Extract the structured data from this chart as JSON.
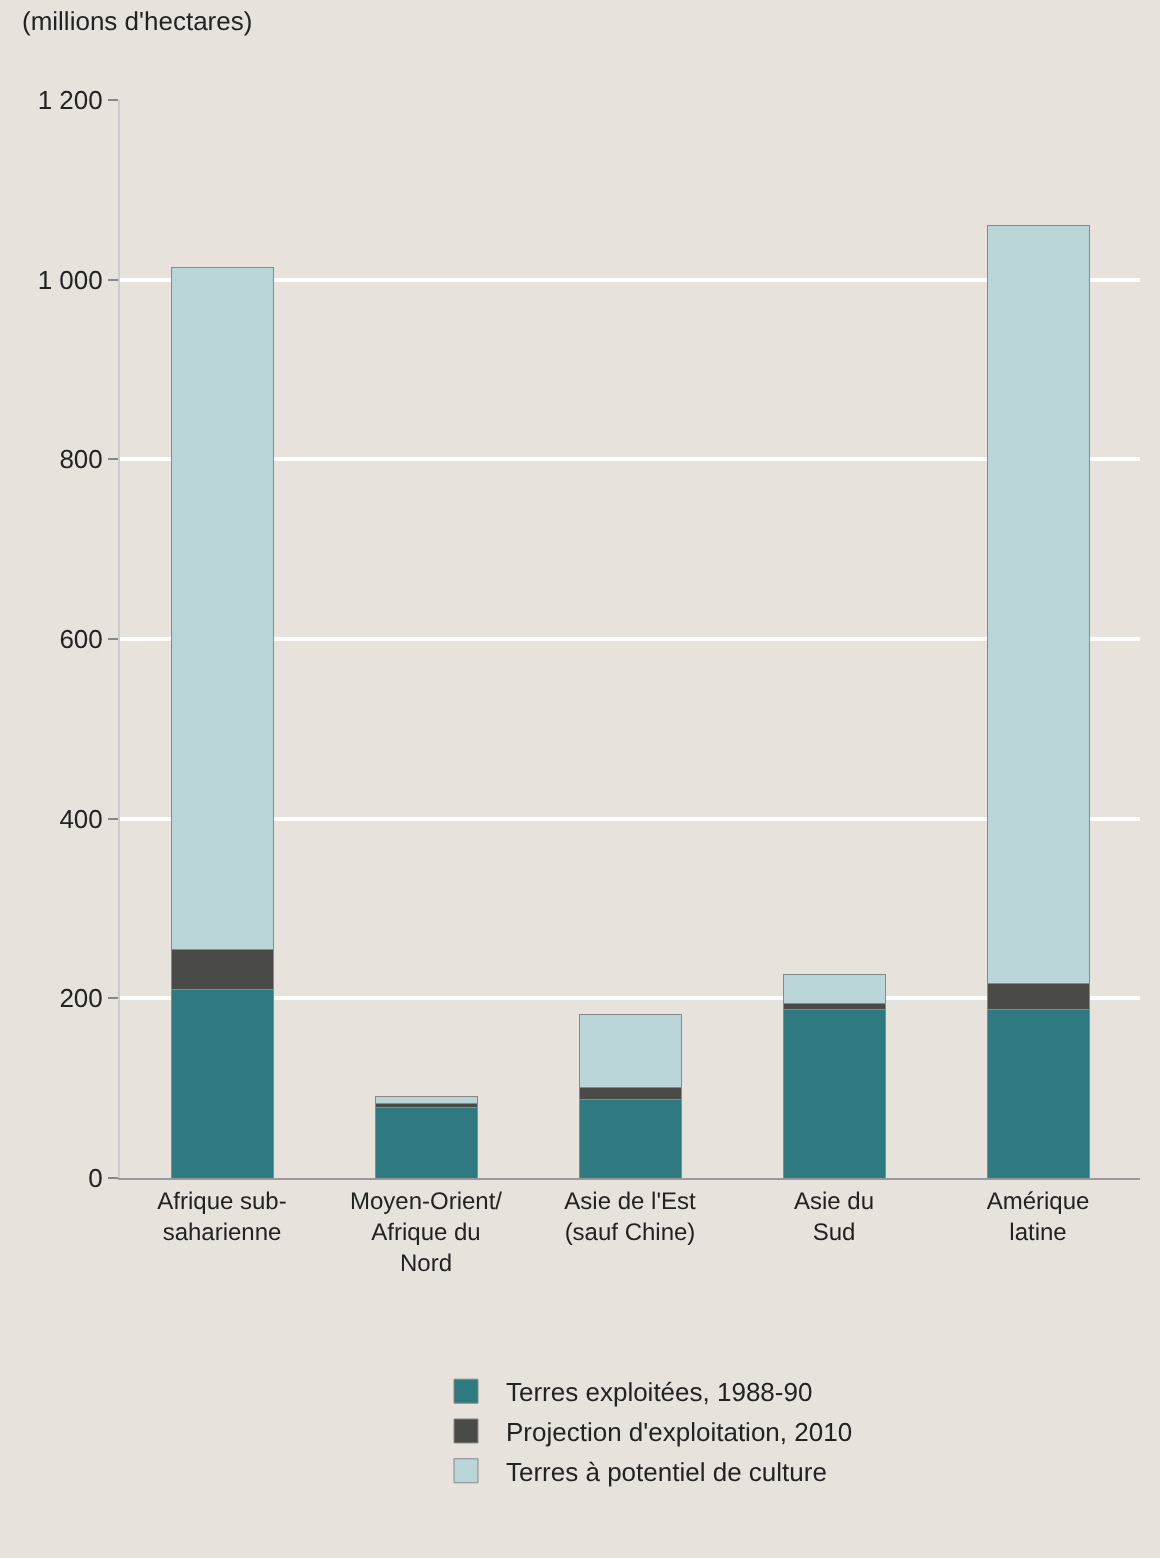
{
  "chart_data": {
    "type": "bar",
    "stacked": true,
    "ylabel": "(millions d'hectares)",
    "categories": [
      "Afrique sub-\nsaharienne",
      "Moyen-Orient/\nAfrique du\nNord",
      "Asie de l'Est\n(sauf Chine)",
      "Asie du\nSud",
      "Amérique\nlatine"
    ],
    "series": [
      {
        "name": "Terres exploitées, 1988-90",
        "color": "#2e7a80",
        "values": [
          210,
          79,
          87,
          188,
          188
        ]
      },
      {
        "name": "Projection d'exploitation, 2010",
        "color": "#4a4a47",
        "values": [
          44,
          4,
          14,
          6,
          28
        ]
      },
      {
        "name": "Terres à potentiel de culture",
        "color": "#b9d5d8",
        "values": [
          759,
          8,
          81,
          33,
          844
        ]
      }
    ],
    "ylim": [
      0,
      1200
    ],
    "yticks": [
      0,
      200,
      400,
      600,
      800,
      {
        "value": 1000,
        "label": "1 000"
      },
      {
        "value": 1200,
        "label": "1 200"
      }
    ],
    "grid": "y",
    "legend": "bottom"
  }
}
